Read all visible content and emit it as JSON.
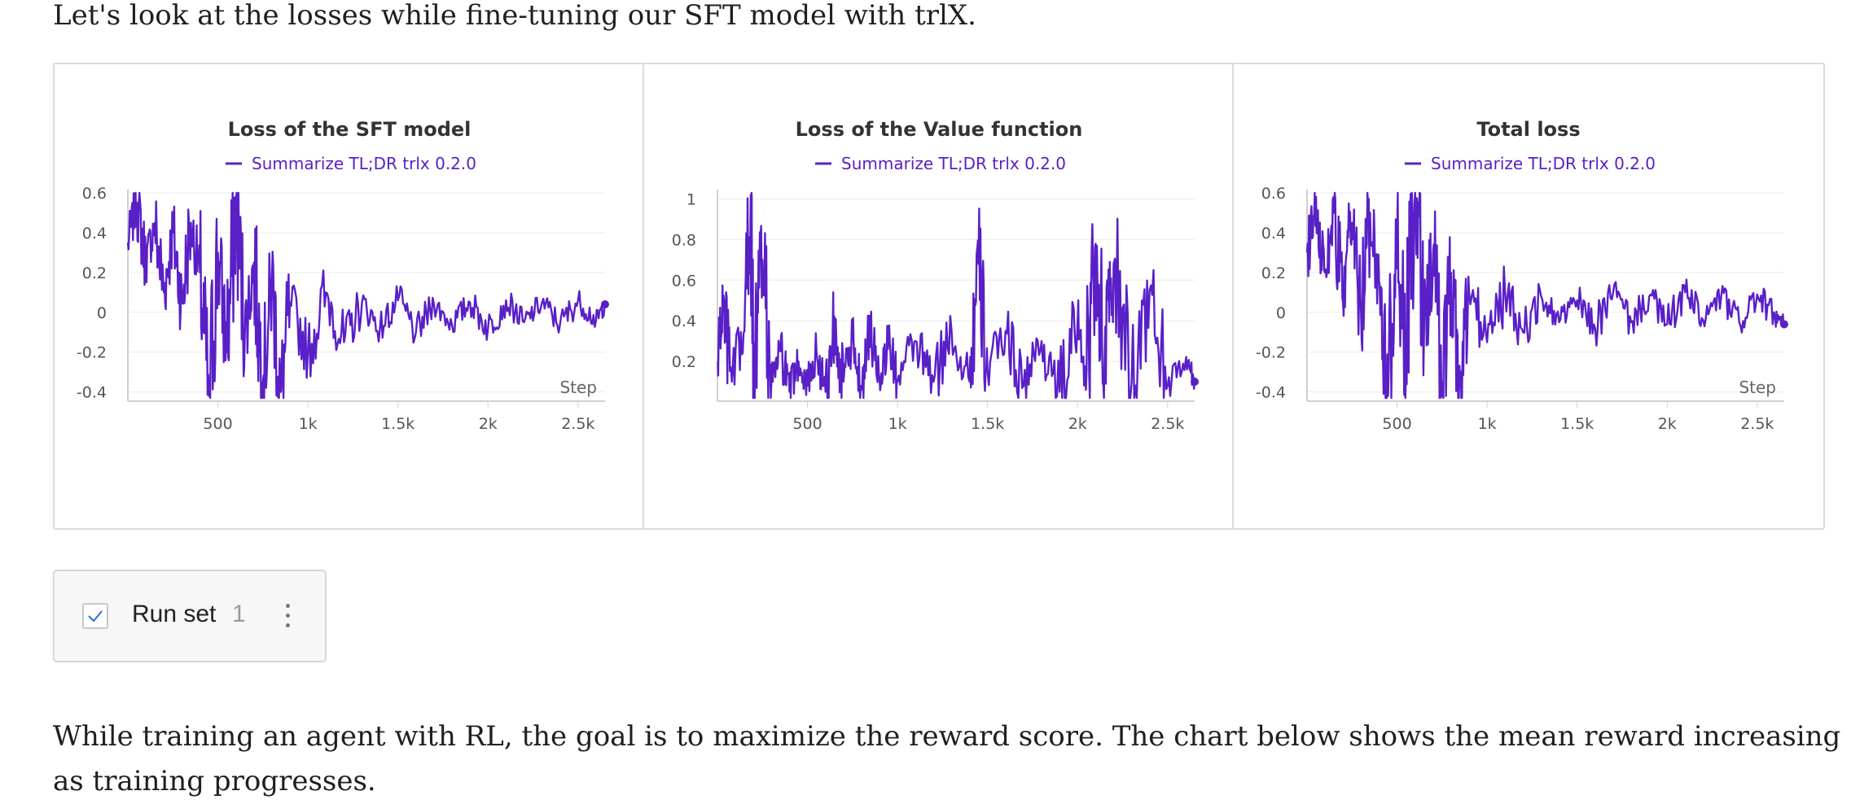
{
  "text": {
    "intro": "Let's look at the losses while fine-tuning our SFT model with trlX.",
    "outro": "While training an agent with RL, the goal is to maximize the reward score. The chart below shows the mean reward increasing as training progresses."
  },
  "run_set": {
    "label": "Run set",
    "count": "1",
    "checked": true
  },
  "colors": {
    "series": "#5a20c8",
    "grid": "#ececec",
    "axis": "#d0d0d0"
  },
  "chart_data": [
    {
      "type": "line",
      "title": "Loss of the SFT model",
      "xlabel": "Step",
      "legend": "top-center",
      "xlim": [
        0,
        2650
      ],
      "ylim": [
        -0.43,
        0.6
      ],
      "xticks": [
        500,
        1000,
        1500,
        2000,
        2500
      ],
      "xtick_labels": [
        "500",
        "1k",
        "1.5k",
        "2k",
        "2.5k"
      ],
      "yticks": [
        -0.4,
        -0.2,
        0,
        0.2,
        0.4,
        0.6
      ],
      "ytick_labels": [
        "-0.4",
        "-0.2",
        "0",
        "0.2",
        "0.4",
        "0.6"
      ],
      "series": [
        {
          "name": "Summarize TL;DR trlx 0.2.0",
          "x": [
            0,
            50,
            100,
            150,
            200,
            250,
            300,
            350,
            400,
            450,
            500,
            550,
            600,
            650,
            700,
            750,
            800,
            850,
            900,
            1000,
            1100,
            1200,
            1300,
            1400,
            1500,
            1600,
            1700,
            1800,
            1900,
            2000,
            2100,
            2200,
            2300,
            2400,
            2500,
            2600,
            2650
          ],
          "y": [
            0.35,
            0.55,
            0.25,
            0.45,
            0.1,
            0.4,
            0.05,
            0.45,
            0.2,
            -0.42,
            0.3,
            -0.2,
            0.55,
            -0.1,
            0.25,
            -0.35,
            0.15,
            -0.4,
            0.05,
            -0.2,
            0.1,
            -0.15,
            0.05,
            -0.08,
            0.06,
            -0.1,
            0.04,
            -0.06,
            0.05,
            -0.08,
            0.06,
            -0.05,
            0.05,
            -0.06,
            0.06,
            -0.04,
            0.04
          ]
        }
      ]
    },
    {
      "type": "line",
      "title": "Loss of the Value function",
      "xlabel": "",
      "legend": "top-center",
      "xlim": [
        0,
        2650
      ],
      "ylim": [
        0.02,
        1.03
      ],
      "xticks": [
        500,
        1000,
        1500,
        2000,
        2500
      ],
      "xtick_labels": [
        "500",
        "1k",
        "1.5k",
        "2k",
        "2.5k"
      ],
      "yticks": [
        0.2,
        0.4,
        0.6,
        0.8,
        1
      ],
      "ytick_labels": [
        "0.2",
        "0.4",
        "0.6",
        "0.8",
        "1"
      ],
      "series": [
        {
          "name": "Summarize TL;DR trlx 0.2.0",
          "x": [
            0,
            30,
            80,
            150,
            185,
            200,
            250,
            300,
            350,
            400,
            450,
            500,
            550,
            600,
            650,
            700,
            750,
            800,
            850,
            900,
            950,
            1000,
            1100,
            1200,
            1300,
            1400,
            1450,
            1500,
            1600,
            1700,
            1800,
            1900,
            2000,
            2050,
            2100,
            2150,
            2200,
            2300,
            2400,
            2500,
            2600,
            2650
          ],
          "y": [
            0.2,
            0.48,
            0.1,
            0.35,
            1.02,
            0.15,
            0.7,
            0.1,
            0.25,
            0.05,
            0.2,
            0.08,
            0.25,
            0.05,
            0.42,
            0.1,
            0.3,
            0.08,
            0.35,
            0.12,
            0.3,
            0.1,
            0.3,
            0.1,
            0.35,
            0.1,
            0.68,
            0.15,
            0.35,
            0.08,
            0.3,
            0.05,
            0.4,
            0.15,
            0.78,
            0.2,
            0.68,
            0.1,
            0.55,
            0.08,
            0.2,
            0.1
          ]
        }
      ]
    },
    {
      "type": "line",
      "title": "Total loss",
      "xlabel": "Step",
      "legend": "top-center",
      "xlim": [
        0,
        2650
      ],
      "ylim": [
        -0.43,
        0.6
      ],
      "xticks": [
        500,
        1000,
        1500,
        2000,
        2500
      ],
      "xtick_labels": [
        "500",
        "1k",
        "1.5k",
        "2k",
        "2.5k"
      ],
      "yticks": [
        -0.4,
        -0.2,
        0,
        0.2,
        0.4,
        0.6
      ],
      "ytick_labels": [
        "-0.4",
        "-0.2",
        "0",
        "0.2",
        "0.4",
        "0.6"
      ],
      "series": [
        {
          "name": "Summarize TL;DR trlx 0.2.0",
          "x": [
            0,
            50,
            100,
            150,
            200,
            250,
            300,
            350,
            400,
            450,
            500,
            550,
            600,
            650,
            700,
            750,
            800,
            850,
            900,
            1000,
            1100,
            1200,
            1300,
            1400,
            1500,
            1600,
            1700,
            1800,
            1900,
            2000,
            2100,
            2200,
            2300,
            2400,
            2500,
            2600,
            2650
          ],
          "y": [
            0.3,
            0.58,
            0.2,
            0.5,
            0.05,
            0.45,
            0.0,
            0.5,
            0.15,
            -0.42,
            0.35,
            -0.25,
            0.6,
            -0.1,
            0.3,
            -0.35,
            0.2,
            -0.38,
            0.1,
            -0.15,
            0.1,
            -0.1,
            0.08,
            -0.05,
            0.06,
            -0.08,
            0.1,
            -0.05,
            0.08,
            -0.06,
            0.1,
            -0.04,
            0.08,
            -0.05,
            0.09,
            -0.03,
            -0.06
          ]
        }
      ]
    }
  ]
}
